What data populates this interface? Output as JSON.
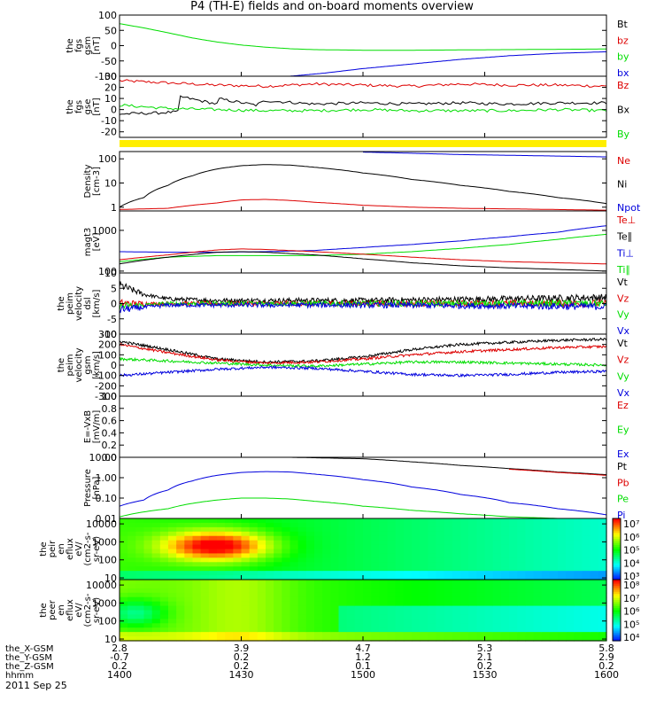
{
  "title": "P4 (TH-E) fields and on-board moments overview",
  "date": "2011 Sep 25",
  "colors": {
    "black": "#000000",
    "red": "#dd0000",
    "green": "#00dd00",
    "blue": "#0000dd",
    "yellow": "#ffee00"
  },
  "orbit": {
    "rows": [
      {
        "label": "the_X-GSM",
        "values": [
          "2.8",
          "3.9",
          "4.7",
          "5.3",
          "5.8"
        ]
      },
      {
        "label": "the_Y-GSM",
        "values": [
          "-0.7",
          "0.2",
          "1.2",
          "2.1",
          "2.9"
        ]
      },
      {
        "label": "the_Z-GSM",
        "values": [
          "0.2",
          "0.2",
          "0.1",
          "0.2",
          "0.2"
        ]
      },
      {
        "label": "hhmm",
        "values": [
          "1400",
          "1430",
          "1500",
          "1530",
          "1600"
        ]
      }
    ]
  },
  "chart_data": [
    {
      "type": "line",
      "name": "fgs_gsm",
      "ylabel": [
        "the",
        "fgs",
        "gsm",
        "[nT]"
      ],
      "ylim": [
        -100,
        100
      ],
      "yticks": [
        100,
        50,
        0,
        -50,
        -100
      ],
      "ytick_labels": [
        "100",
        "50",
        "0",
        "-50",
        "-100"
      ],
      "legend": [
        {
          "label": "Bt",
          "color": "#000000"
        },
        {
          "label": "bz",
          "color": "#dd0000"
        },
        {
          "label": "by",
          "color": "#00dd00"
        },
        {
          "label": "bx",
          "color": "#0000dd"
        }
      ],
      "series": [
        {
          "name": "by",
          "color": "#00dd00",
          "x": [
            0,
            0.05,
            0.1,
            0.15,
            0.2,
            0.25,
            0.3,
            0.35,
            0.4,
            0.5,
            0.6,
            0.7,
            0.8,
            0.9,
            1
          ],
          "y": [
            72,
            58,
            42,
            25,
            12,
            2,
            -5,
            -10,
            -13,
            -15,
            -15,
            -14,
            -13,
            -12,
            -11
          ]
        },
        {
          "name": "bx",
          "color": "#0000dd",
          "x": [
            0.35,
            0.42,
            0.5,
            0.6,
            0.7,
            0.8,
            0.9,
            1
          ],
          "y": [
            -100,
            -90,
            -75,
            -60,
            -45,
            -33,
            -25,
            -20
          ]
        }
      ]
    },
    {
      "type": "line",
      "name": "fgs_gse",
      "ylabel": [
        "the",
        "fgs",
        "gse",
        "[nT]"
      ],
      "ylim": [
        -25,
        30
      ],
      "yticks": [
        30,
        20,
        10,
        0,
        -10,
        -20
      ],
      "ytick_labels": [
        "30",
        "20",
        "10",
        "0",
        "-10",
        "-20"
      ],
      "legend": [
        {
          "label": "Bz",
          "color": "#dd0000"
        },
        {
          "label": "Bx",
          "color": "#000000"
        },
        {
          "label": "By",
          "color": "#00dd00"
        }
      ],
      "series": [
        {
          "name": "Bz",
          "color": "#dd0000",
          "x": [
            0,
            0.1,
            0.2,
            0.3,
            0.4,
            0.5,
            0.6,
            0.7,
            0.8,
            0.9,
            1
          ],
          "y": [
            26,
            24,
            22,
            21,
            23,
            22,
            21,
            23,
            22,
            22,
            21
          ]
        },
        {
          "name": "Bx",
          "color": "#000000",
          "x": [
            0,
            0.08,
            0.12,
            0.12,
            0.2,
            0.2,
            0.28,
            0.3,
            0.4,
            0.5,
            0.6,
            0.7,
            0.8,
            0.9,
            1
          ],
          "y": [
            -4,
            -3,
            -2,
            12,
            5,
            10,
            4,
            8,
            5,
            6,
            5,
            6,
            5,
            6,
            6
          ]
        },
        {
          "name": "By",
          "color": "#00dd00",
          "x": [
            0,
            0.1,
            0.2,
            0.3,
            0.4,
            0.5,
            0.6,
            0.7,
            0.8,
            0.9,
            1
          ],
          "y": [
            4,
            1,
            0,
            -1,
            -1,
            0,
            -1,
            -1,
            -1,
            0,
            -1
          ]
        }
      ]
    },
    {
      "type": "line",
      "name": "density",
      "log": true,
      "ylabel": [
        "Density",
        "[cm-3]"
      ],
      "ylim": [
        0.7,
        200
      ],
      "yticks": [
        100,
        10,
        1
      ],
      "ytick_labels": [
        "100",
        "10",
        "1"
      ],
      "legend": [
        {
          "label": "Ne",
          "color": "#dd0000"
        },
        {
          "label": "Ni",
          "color": "#000000"
        },
        {
          "label": "Npot",
          "color": "#0000dd"
        }
      ],
      "series": [
        {
          "name": "Ni",
          "color": "#000000",
          "x": [
            0,
            0.05,
            0.1,
            0.15,
            0.2,
            0.25,
            0.3,
            0.35,
            0.4,
            0.5,
            0.6,
            0.7,
            0.8,
            0.9,
            1
          ],
          "y": [
            1,
            2.5,
            8,
            20,
            38,
            52,
            58,
            55,
            45,
            26,
            14,
            8,
            4.5,
            2.5,
            1.4
          ]
        },
        {
          "name": "Ne",
          "color": "#dd0000",
          "x": [
            0,
            0.1,
            0.2,
            0.25,
            0.3,
            0.35,
            0.4,
            0.5,
            0.6,
            0.7,
            0.8,
            0.9,
            1
          ],
          "y": [
            0.8,
            0.9,
            1.5,
            2,
            2.1,
            1.9,
            1.6,
            1.2,
            1,
            0.9,
            0.85,
            0.8,
            0.75
          ]
        },
        {
          "name": "Npot",
          "color": "#0000dd",
          "x": [
            0.5,
            0.6,
            0.7,
            0.8,
            0.9,
            1
          ],
          "y": [
            190,
            170,
            150,
            140,
            130,
            120
          ]
        }
      ]
    },
    {
      "type": "line",
      "name": "temperature",
      "log": true,
      "ylabel": [
        "magt3",
        "[eV]"
      ],
      "ylim": [
        90,
        3000
      ],
      "yticks": [
        1000,
        100
      ],
      "ytick_labels": [
        "1000",
        "100"
      ],
      "legend": [
        {
          "label": "Te⊥",
          "color": "#dd0000"
        },
        {
          "label": "Te∥",
          "color": "#000000"
        },
        {
          "label": "Ti⊥",
          "color": "#0000dd"
        },
        {
          "label": "Ti∥",
          "color": "#00dd00"
        }
      ],
      "series": [
        {
          "name": "Ti⊥",
          "color": "#0000dd",
          "x": [
            0,
            0.1,
            0.2,
            0.3,
            0.4,
            0.5,
            0.6,
            0.7,
            0.8,
            0.9,
            1
          ],
          "y": [
            300,
            290,
            290,
            300,
            320,
            380,
            450,
            550,
            700,
            900,
            1300
          ]
        },
        {
          "name": "Ti∥",
          "color": "#00dd00",
          "x": [
            0,
            0.1,
            0.2,
            0.3,
            0.4,
            0.5,
            0.6,
            0.7,
            0.8,
            0.9,
            1
          ],
          "y": [
            170,
            220,
            240,
            240,
            240,
            260,
            300,
            360,
            450,
            600,
            800
          ]
        },
        {
          "name": "Te⊥",
          "color": "#dd0000",
          "x": [
            0,
            0.1,
            0.2,
            0.25,
            0.3,
            0.4,
            0.5,
            0.6,
            0.7,
            0.8,
            0.9,
            1
          ],
          "y": [
            190,
            250,
            330,
            350,
            340,
            300,
            260,
            220,
            190,
            170,
            160,
            150
          ]
        },
        {
          "name": "Te∥",
          "color": "#000000",
          "x": [
            0,
            0.1,
            0.2,
            0.25,
            0.3,
            0.4,
            0.5,
            0.6,
            0.7,
            0.8,
            0.9,
            1
          ],
          "y": [
            150,
            220,
            290,
            300,
            290,
            250,
            200,
            160,
            135,
            120,
            110,
            100
          ]
        }
      ]
    },
    {
      "type": "line",
      "name": "peim_velocity_dsl",
      "noisy": true,
      "ylabel": [
        "the",
        "peim",
        "velocity",
        "dsl",
        "[km/s]"
      ],
      "ylim": [
        -10,
        10
      ],
      "yticks": [
        10,
        5,
        0,
        -5,
        -10
      ],
      "ytick_labels": [
        "10",
        "5",
        "0",
        "-5",
        "-10"
      ],
      "legend": [
        {
          "label": "Vt",
          "color": "#000000"
        },
        {
          "label": "Vz",
          "color": "#dd0000"
        },
        {
          "label": "Vy",
          "color": "#00dd00"
        },
        {
          "label": "Vx",
          "color": "#0000dd"
        }
      ],
      "series": [
        {
          "name": "Vt",
          "color": "#000000",
          "x": [
            0,
            0.05,
            0.1,
            0.2,
            0.5,
            0.8,
            1
          ],
          "y": [
            6,
            3,
            1.5,
            1,
            1,
            1.5,
            2
          ]
        },
        {
          "name": "Vz",
          "color": "#dd0000",
          "x": [
            0,
            0.1,
            0.5,
            1
          ],
          "y": [
            0,
            0,
            0,
            0
          ]
        },
        {
          "name": "Vy",
          "color": "#00dd00",
          "x": [
            0,
            0.1,
            0.5,
            1
          ],
          "y": [
            -1,
            0,
            0,
            0
          ]
        },
        {
          "name": "Vx",
          "color": "#0000dd",
          "x": [
            0,
            0.1,
            0.5,
            1
          ],
          "y": [
            -2,
            -0.5,
            -0.5,
            -1
          ]
        }
      ]
    },
    {
      "type": "line",
      "name": "peim_velocity_gsm",
      "noisy": true,
      "ylabel": [
        "the",
        "peim",
        "velocity",
        "gsm",
        "[km/s]"
      ],
      "ylim": [
        -300,
        300
      ],
      "yticks": [
        300,
        200,
        100,
        0,
        -100,
        -200,
        -300
      ],
      "ytick_labels": [
        "300",
        "200",
        "100",
        "0",
        "-100",
        "-200",
        "-300"
      ],
      "legend": [
        {
          "label": "Vt",
          "color": "#000000"
        },
        {
          "label": "Vz",
          "color": "#dd0000"
        },
        {
          "label": "Vy",
          "color": "#00dd00"
        },
        {
          "label": "Vx",
          "color": "#0000dd"
        }
      ],
      "series": [
        {
          "name": "Vt",
          "color": "#000000",
          "x": [
            0,
            0.1,
            0.2,
            0.3,
            0.4,
            0.5,
            0.6,
            0.7,
            0.8,
            0.9,
            1
          ],
          "y": [
            230,
            150,
            60,
            30,
            40,
            80,
            150,
            200,
            220,
            240,
            250
          ]
        },
        {
          "name": "Vz",
          "color": "#dd0000",
          "x": [
            0,
            0.1,
            0.2,
            0.3,
            0.4,
            0.5,
            0.6,
            0.7,
            0.8,
            0.9,
            1
          ],
          "y": [
            200,
            120,
            50,
            20,
            30,
            60,
            100,
            130,
            150,
            170,
            180
          ]
        },
        {
          "name": "Vy",
          "color": "#00dd00",
          "x": [
            0,
            0.1,
            0.2,
            0.3,
            0.4,
            0.5,
            0.6,
            0.7,
            0.8,
            0.9,
            1
          ],
          "y": [
            60,
            40,
            20,
            0,
            -10,
            10,
            30,
            30,
            20,
            10,
            0
          ]
        },
        {
          "name": "Vx",
          "color": "#0000dd",
          "x": [
            0,
            0.1,
            0.2,
            0.3,
            0.4,
            0.5,
            0.6,
            0.7,
            0.8,
            0.9,
            1
          ],
          "y": [
            -100,
            -70,
            -40,
            -20,
            -30,
            -60,
            -90,
            -100,
            -90,
            -70,
            -60
          ]
        }
      ]
    },
    {
      "type": "line",
      "name": "e_field",
      "ylabel": [
        "E=-VxB",
        "[mV/m]"
      ],
      "ylim": [
        0,
        1
      ],
      "yticks": [
        1,
        0.8,
        0.6,
        0.4,
        0.2,
        0
      ],
      "ytick_labels": [
        "1.0",
        "0.8",
        "0.6",
        "0.4",
        "0.2",
        "0.0"
      ],
      "legend": [
        {
          "label": "Ez",
          "color": "#dd0000"
        },
        {
          "label": "Ey",
          "color": "#00dd00"
        },
        {
          "label": "Ex",
          "color": "#0000dd"
        }
      ],
      "series": []
    },
    {
      "type": "line",
      "name": "pressure",
      "log": true,
      "ylabel": [
        "Pressure",
        "[nPa]"
      ],
      "ylim": [
        0.01,
        10
      ],
      "yticks": [
        10,
        1,
        0.1,
        0.01
      ],
      "ytick_labels": [
        "10.00",
        "1.00",
        "0.10",
        "0.01"
      ],
      "legend": [
        {
          "label": "Pt",
          "color": "#000000"
        },
        {
          "label": "Pb",
          "color": "#dd0000"
        },
        {
          "label": "Pe",
          "color": "#00dd00"
        },
        {
          "label": "Pi",
          "color": "#0000dd"
        }
      ],
      "series": [
        {
          "name": "Pt",
          "color": "#000000",
          "x": [
            0.35,
            0.5,
            0.6,
            0.7,
            0.8,
            0.9,
            1
          ],
          "y": [
            10,
            8.5,
            6,
            4,
            2.8,
            1.9,
            1.4
          ]
        },
        {
          "name": "Pb",
          "color": "#dd0000",
          "x": [
            0.8,
            0.9,
            1
          ],
          "y": [
            2.6,
            1.8,
            1.3
          ]
        },
        {
          "name": "Pi",
          "color": "#0000dd",
          "x": [
            0,
            0.05,
            0.1,
            0.15,
            0.2,
            0.25,
            0.3,
            0.35,
            0.4,
            0.5,
            0.6,
            0.7,
            0.8,
            0.9,
            1
          ],
          "y": [
            0.04,
            0.08,
            0.25,
            0.7,
            1.3,
            1.8,
            2,
            1.9,
            1.5,
            0.8,
            0.35,
            0.15,
            0.06,
            0.03,
            0.015
          ]
        },
        {
          "name": "Pe",
          "color": "#00dd00",
          "x": [
            0,
            0.1,
            0.2,
            0.25,
            0.3,
            0.35,
            0.4,
            0.5,
            0.6,
            0.7,
            0.8,
            0.9,
            1
          ],
          "y": [
            0.012,
            0.03,
            0.08,
            0.1,
            0.1,
            0.09,
            0.07,
            0.04,
            0.025,
            0.017,
            0.012,
            0.01,
            0.01
          ]
        }
      ]
    },
    {
      "type": "heatmap",
      "name": "peir_en_eflux",
      "ylabel": [
        "the",
        "peir",
        "en",
        "eflux",
        "eV/",
        "(cm2-s-",
        "sr-eV)"
      ],
      "ylim": [
        8,
        20000
      ],
      "yticks": [
        10000,
        1000,
        100,
        10
      ],
      "ytick_labels": [
        "10000",
        "1000",
        "100",
        "10"
      ],
      "colorbar": {
        "min_exp": 3,
        "max_exp": 7,
        "labels": [
          "10⁷",
          "10⁶",
          "10⁵",
          "10⁴",
          "10³"
        ]
      }
    },
    {
      "type": "heatmap",
      "name": "peer_en_eflux",
      "ylabel": [
        "the",
        "peer",
        "en",
        "eflux",
        "eV/",
        "(cm2-s-",
        "sr-eV)"
      ],
      "ylim": [
        8,
        20000
      ],
      "yticks": [
        10000,
        1000,
        100,
        10
      ],
      "ytick_labels": [
        "10000",
        "1000",
        "100",
        "10"
      ],
      "colorbar": {
        "min_exp": 4,
        "max_exp": 8,
        "labels": [
          "10⁸",
          "10⁷",
          "10⁶",
          "10⁵",
          "10⁴"
        ]
      }
    }
  ]
}
